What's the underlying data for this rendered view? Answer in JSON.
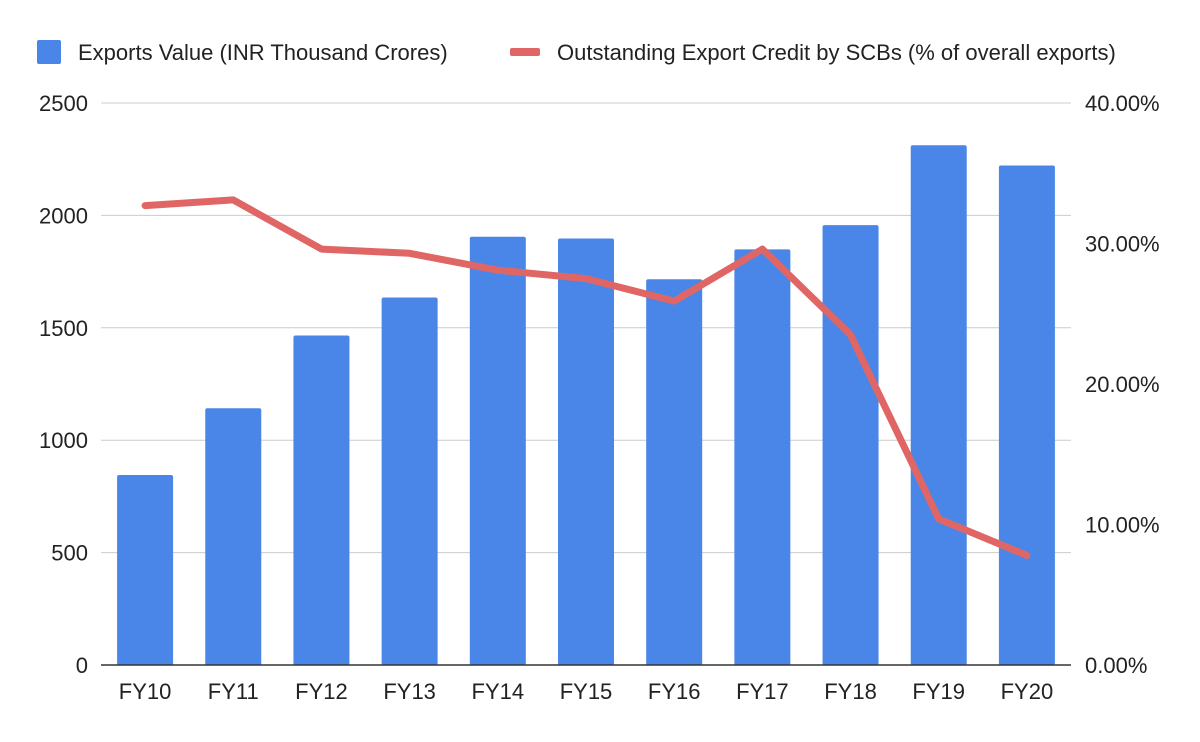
{
  "chart_data": {
    "type": "bar",
    "title": "",
    "xlabel": "",
    "ylabel": "",
    "categories": [
      "FY10",
      "FY11",
      "FY12",
      "FY13",
      "FY14",
      "FY15",
      "FY16",
      "FY17",
      "FY18",
      "FY19",
      "FY20"
    ],
    "series": [
      {
        "name": "Exports Value (INR Thousand Crores)",
        "type": "bar",
        "axis": "left",
        "color": "#4a86e8",
        "values": [
          845,
          1142,
          1466,
          1635,
          1905,
          1897,
          1716,
          1849,
          1957,
          2312,
          2222
        ]
      },
      {
        "name": "Outstanding Export Credit by SCBs (% of overall exports)",
        "type": "line",
        "axis": "right",
        "color": "#e06666",
        "values": [
          32.7,
          33.1,
          29.6,
          29.3,
          28.1,
          27.5,
          25.9,
          29.6,
          23.5,
          10.4,
          7.8
        ]
      }
    ],
    "y_left": {
      "min": 0,
      "max": 2500,
      "ticks": [
        "0",
        "500",
        "1000",
        "1500",
        "2000",
        "2500"
      ]
    },
    "y_right": {
      "min": 0,
      "max": 40,
      "ticks": [
        "0.00%",
        "10.00%",
        "20.00%",
        "30.00%",
        "40.00%"
      ]
    },
    "grid": true,
    "legend_position": "top"
  }
}
